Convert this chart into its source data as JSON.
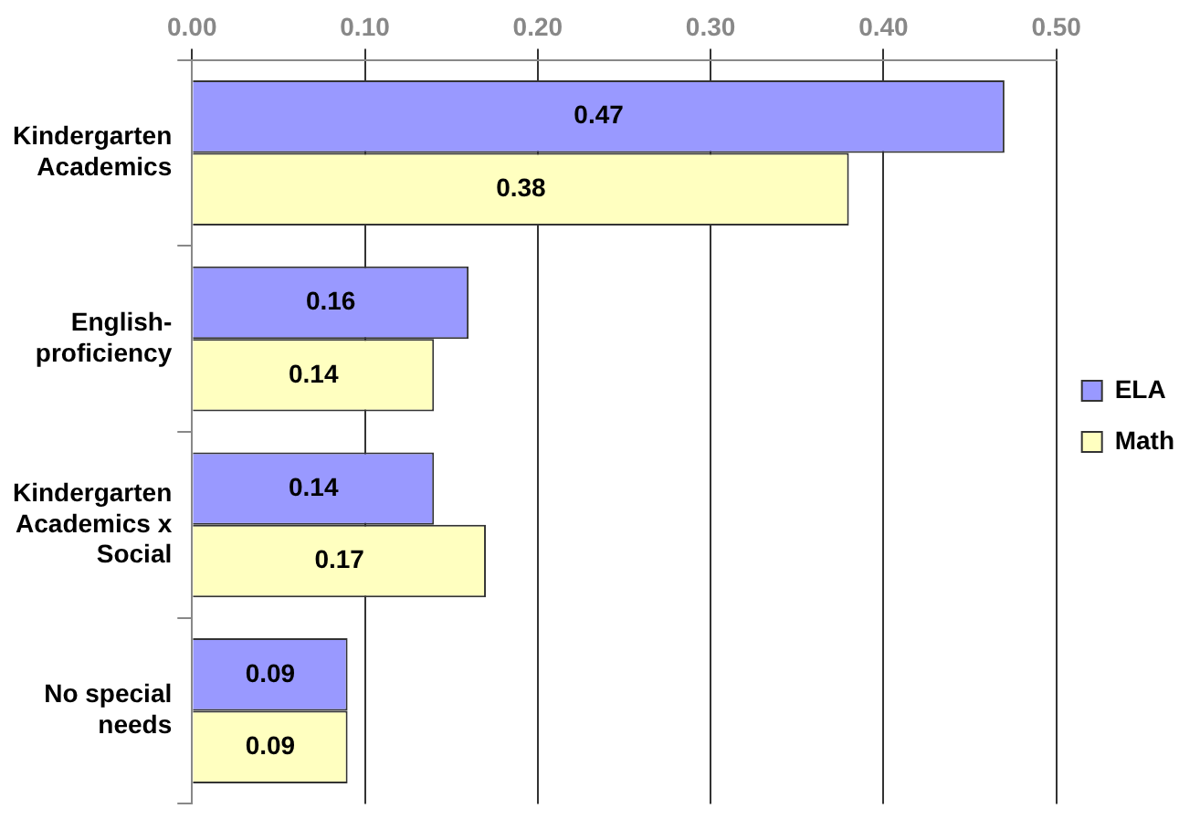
{
  "chart_data": {
    "type": "bar",
    "orientation": "horizontal",
    "categories": [
      "Kindergarten Academics",
      "English-proficiency",
      "Kindergarten Academics x Social",
      "No special needs"
    ],
    "series": [
      {
        "name": "ELA",
        "color": "#9999ff",
        "values": [
          0.47,
          0.16,
          0.14,
          0.09
        ]
      },
      {
        "name": "Math",
        "color": "#ffffc0",
        "values": [
          0.38,
          0.14,
          0.17,
          0.09
        ]
      }
    ],
    "xlim": [
      0,
      0.5
    ],
    "xticks": [
      {
        "value": 0,
        "label": "0.00"
      },
      {
        "value": 0.1,
        "label": "0.10"
      },
      {
        "value": 0.2,
        "label": "0.20"
      },
      {
        "value": 0.3,
        "label": "0.30"
      },
      {
        "value": 0.4,
        "label": "0.40"
      },
      {
        "value": 0.5,
        "label": "0.50"
      }
    ],
    "grid": "x",
    "legend": "right",
    "data_labels": true
  }
}
